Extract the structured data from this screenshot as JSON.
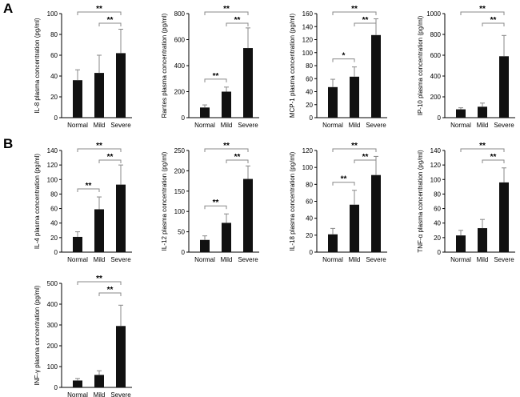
{
  "panel_letters": [
    "A",
    "B"
  ],
  "chart_data": [
    {
      "type": "bar",
      "ylabel": "IL-8 plasma concentration (pg/ml)",
      "categories": [
        "Normal",
        "Mild",
        "Severe"
      ],
      "values": [
        36,
        43,
        62
      ],
      "errors": [
        10,
        17,
        23
      ],
      "ylim": [
        0,
        100
      ],
      "yticks": [
        0,
        20,
        40,
        60,
        80,
        100
      ],
      "significance": [
        {
          "from": 0,
          "to": 2,
          "label": "**"
        },
        {
          "from": 1,
          "to": 2,
          "label": "**"
        }
      ]
    },
    {
      "type": "bar",
      "ylabel": "Rantes plasma concentration (pg/ml)",
      "categories": [
        "Normal",
        "Mild",
        "Severe"
      ],
      "values": [
        78,
        200,
        535
      ],
      "errors": [
        20,
        35,
        155
      ],
      "ylim": [
        0,
        800
      ],
      "yticks": [
        0,
        200,
        400,
        600,
        800
      ],
      "significance": [
        {
          "from": 0,
          "to": 1,
          "label": "**"
        },
        {
          "from": 0,
          "to": 2,
          "label": "**"
        },
        {
          "from": 1,
          "to": 2,
          "label": "**"
        }
      ]
    },
    {
      "type": "bar",
      "ylabel": "MCP-1 plasma concentration (pg/ml)",
      "categories": [
        "Normal",
        "Mild",
        "Severe"
      ],
      "values": [
        47,
        63,
        127
      ],
      "errors": [
        12,
        15,
        25
      ],
      "ylim": [
        0,
        160
      ],
      "yticks": [
        0,
        20,
        40,
        60,
        80,
        100,
        120,
        140,
        160
      ],
      "significance": [
        {
          "from": 0,
          "to": 1,
          "label": "*"
        },
        {
          "from": 0,
          "to": 2,
          "label": "**"
        },
        {
          "from": 1,
          "to": 2,
          "label": "**"
        }
      ]
    },
    {
      "type": "bar",
      "ylabel": "IP-10 plasma concentration (pg/ml)",
      "categories": [
        "Normal",
        "Mild",
        "Severe"
      ],
      "values": [
        80,
        105,
        590
      ],
      "errors": [
        15,
        35,
        200
      ],
      "ylim": [
        0,
        1000
      ],
      "yticks": [
        0,
        200,
        400,
        600,
        800,
        1000
      ],
      "significance": [
        {
          "from": 0,
          "to": 2,
          "label": "**"
        },
        {
          "from": 1,
          "to": 2,
          "label": "**"
        }
      ]
    },
    {
      "type": "bar",
      "ylabel": "IL-4 plasma concentration (pg/ml)",
      "categories": [
        "Normal",
        "Mild",
        "Severe"
      ],
      "values": [
        21,
        59,
        93
      ],
      "errors": [
        7,
        17,
        27
      ],
      "ylim": [
        0,
        140
      ],
      "yticks": [
        0,
        20,
        40,
        60,
        80,
        100,
        120,
        140
      ],
      "significance": [
        {
          "from": 0,
          "to": 1,
          "label": "**"
        },
        {
          "from": 0,
          "to": 2,
          "label": "**"
        },
        {
          "from": 1,
          "to": 2,
          "label": "**"
        }
      ]
    },
    {
      "type": "bar",
      "ylabel": "IL-12 plasma concentration (pg/ml)",
      "categories": [
        "Normal",
        "Mild",
        "Severe"
      ],
      "values": [
        30,
        72,
        180
      ],
      "errors": [
        10,
        22,
        32
      ],
      "ylim": [
        0,
        250
      ],
      "yticks": [
        0,
        50,
        100,
        150,
        200,
        250
      ],
      "significance": [
        {
          "from": 0,
          "to": 1,
          "label": "**"
        },
        {
          "from": 0,
          "to": 2,
          "label": "**"
        },
        {
          "from": 1,
          "to": 2,
          "label": "**"
        }
      ]
    },
    {
      "type": "bar",
      "ylabel": "IL-18 plasma concentration (pg/ml)",
      "categories": [
        "Normal",
        "Mild",
        "Severe"
      ],
      "values": [
        21,
        56,
        91
      ],
      "errors": [
        7,
        17,
        22
      ],
      "ylim": [
        0,
        120
      ],
      "yticks": [
        0,
        20,
        40,
        60,
        80,
        100,
        120
      ],
      "significance": [
        {
          "from": 0,
          "to": 1,
          "label": "**"
        },
        {
          "from": 0,
          "to": 2,
          "label": "**"
        },
        {
          "from": 1,
          "to": 2,
          "label": "**"
        }
      ]
    },
    {
      "type": "bar",
      "ylabel": "TNF-α plasma concentration (pg/ml)",
      "categories": [
        "Normal",
        "Mild",
        "Severe"
      ],
      "values": [
        23,
        33,
        96
      ],
      "errors": [
        7,
        12,
        20
      ],
      "ylim": [
        0,
        140
      ],
      "yticks": [
        0,
        20,
        40,
        60,
        80,
        100,
        120,
        140
      ],
      "significance": [
        {
          "from": 0,
          "to": 2,
          "label": "**"
        },
        {
          "from": 1,
          "to": 2,
          "label": "**"
        }
      ]
    },
    {
      "type": "bar",
      "ylabel": "INF-γ plasma concentration (pg/ml)",
      "categories": [
        "Normal",
        "Mild",
        "Severe"
      ],
      "values": [
        33,
        60,
        295
      ],
      "errors": [
        10,
        20,
        100
      ],
      "ylim": [
        0,
        500
      ],
      "yticks": [
        0,
        100,
        200,
        300,
        400,
        500
      ],
      "significance": [
        {
          "from": 0,
          "to": 2,
          "label": "**"
        },
        {
          "from": 1,
          "to": 2,
          "label": "**"
        }
      ]
    }
  ]
}
